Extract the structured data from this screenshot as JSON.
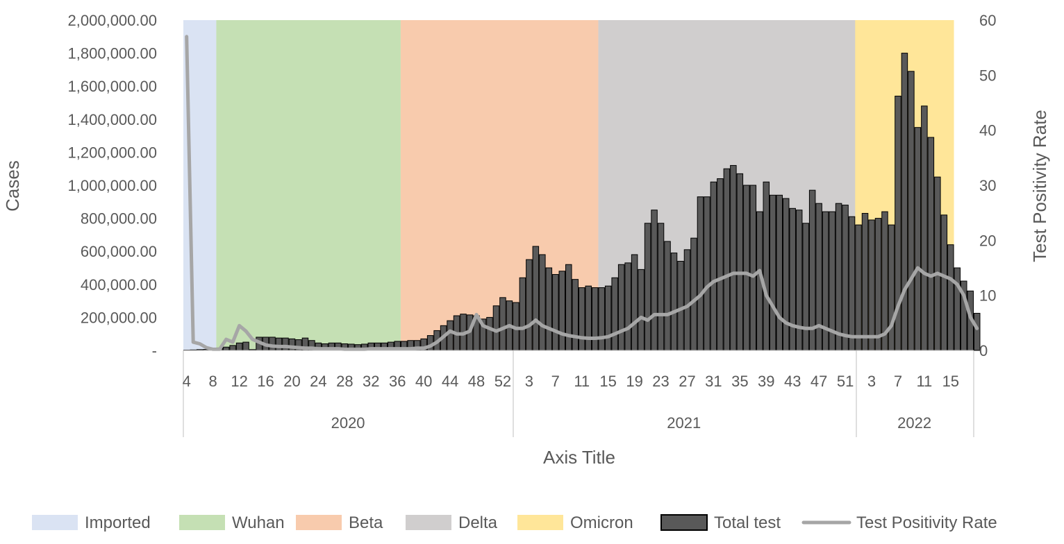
{
  "chart_data": {
    "type": "bar",
    "title": "",
    "xlabel": "Axis Title",
    "ylabel": "Cases",
    "ylabel_right": "Test Positivity Rate",
    "ylim": [
      0,
      2000000
    ],
    "ylim_right": [
      0,
      60
    ],
    "yticks": [
      "-",
      "200,000.00",
      "400,000.00",
      "600,000.00",
      "800,000.00",
      "1,000,000.00",
      "1,200,000.00",
      "1,400,000.00",
      "1,600,000.00",
      "1,800,000.00",
      "2,000,000.00"
    ],
    "yticks_right": [
      "0",
      "10",
      "20",
      "30",
      "40",
      "50",
      "60"
    ],
    "years": [
      {
        "label": "2020",
        "first_week": 4,
        "last_week": 53
      },
      {
        "label": "2021",
        "first_week": 1,
        "last_week": 52
      },
      {
        "label": "2022",
        "first_week": 1,
        "last_week": 18
      }
    ],
    "x_tick_labels": [
      {
        "year": "2020",
        "weeks": [
          4,
          8,
          12,
          16,
          20,
          24,
          28,
          32,
          36,
          40,
          44,
          48,
          52
        ]
      },
      {
        "year": "2021",
        "weeks": [
          3,
          7,
          11,
          15,
          19,
          23,
          27,
          31,
          35,
          39,
          43,
          47,
          51
        ]
      },
      {
        "year": "2022",
        "weeks": [
          3,
          7,
          11,
          15
        ]
      }
    ],
    "variant_periods": [
      {
        "name": "Imported",
        "color": "#dae3f3",
        "start": "2020-W04",
        "end": "2020-W08"
      },
      {
        "name": "Wuhan",
        "color": "#c5e0b4",
        "start": "2020-W09",
        "end": "2020-W36"
      },
      {
        "name": "Beta",
        "color": "#f8cbad",
        "start": "2020-W37",
        "end": "2021-W13"
      },
      {
        "name": "Delta",
        "color": "#d0cece",
        "start": "2021-W14",
        "end": "2021-W55"
      },
      {
        "name": "Omicron",
        "color": "#ffe699",
        "start": "2022-W01",
        "end": "2022-W15"
      }
    ],
    "series": [
      {
        "name": "Total test",
        "type": "bar",
        "axis": "left",
        "color": "#595959",
        "values": [
          2000,
          3000,
          5000,
          6000,
          8000,
          15000,
          20000,
          30000,
          45000,
          50000,
          5000,
          80000,
          80000,
          80000,
          75000,
          75000,
          70000,
          65000,
          75000,
          60000,
          45000,
          40000,
          45000,
          45000,
          40000,
          38000,
          35000,
          38000,
          45000,
          45000,
          45000,
          50000,
          55000,
          55000,
          60000,
          60000,
          70000,
          90000,
          120000,
          150000,
          180000,
          210000,
          220000,
          215000,
          210000,
          190000,
          200000,
          270000,
          320000,
          300000,
          290000,
          440000,
          550000,
          630000,
          580000,
          500000,
          460000,
          480000,
          520000,
          430000,
          380000,
          390000,
          380000,
          380000,
          390000,
          440000,
          520000,
          530000,
          580000,
          490000,
          770000,
          850000,
          770000,
          660000,
          590000,
          540000,
          610000,
          680000,
          930000,
          930000,
          1020000,
          1040000,
          1100000,
          1120000,
          1070000,
          1000000,
          1000000,
          840000,
          1020000,
          940000,
          940000,
          920000,
          860000,
          850000,
          770000,
          970000,
          890000,
          840000,
          840000,
          890000,
          880000,
          810000,
          760000,
          830000,
          790000,
          800000,
          840000,
          760000,
          1540000,
          1800000,
          1690000,
          1350000,
          1480000,
          1290000,
          1050000,
          820000,
          640000,
          500000,
          420000,
          360000,
          225000
        ]
      },
      {
        "name": "Test Positivity Rate",
        "type": "line",
        "axis": "right",
        "color": "#a6a6a6",
        "values": [
          57,
          1.5,
          1.2,
          0.5,
          0.2,
          0.2,
          2,
          1.5,
          4.5,
          3.5,
          2,
          1.5,
          1,
          0.8,
          0.7,
          0.7,
          0.6,
          0.5,
          0.4,
          0.4,
          0.3,
          0.3,
          0.3,
          0.3,
          0.2,
          0.2,
          0.2,
          0.2,
          0.3,
          0.3,
          0.3,
          0.3,
          0.3,
          0.3,
          0.3,
          0.4,
          0.4,
          0.8,
          1.5,
          2.5,
          3.5,
          3,
          3,
          3.5,
          6.5,
          4.5,
          4,
          3.5,
          4,
          4.5,
          4,
          4,
          4.5,
          5.5,
          4.5,
          4,
          3.5,
          3,
          2.7,
          2.5,
          2.3,
          2.2,
          2.2,
          2.3,
          2.5,
          3,
          3.5,
          4,
          5,
          6,
          5.5,
          6.5,
          6.5,
          6.5,
          7,
          7.5,
          8,
          9,
          10,
          11.5,
          12.5,
          13,
          13.5,
          14,
          14,
          14,
          13.5,
          14.5,
          10,
          8,
          6,
          5,
          4.5,
          4.2,
          4,
          4,
          4.5,
          4,
          3.5,
          3,
          2.7,
          2.5,
          2.5,
          2.5,
          2.5,
          2.5,
          3,
          4.5,
          8,
          11,
          13,
          15,
          14,
          13.5,
          14,
          13.5,
          13,
          12,
          10,
          6,
          4
        ]
      }
    ],
    "legend": {
      "position": "bottom",
      "entries": [
        "Imported",
        "Wuhan",
        "Beta",
        "Delta",
        "Omicron",
        "Total test",
        "Test Positivity Rate"
      ]
    },
    "grid": false
  }
}
